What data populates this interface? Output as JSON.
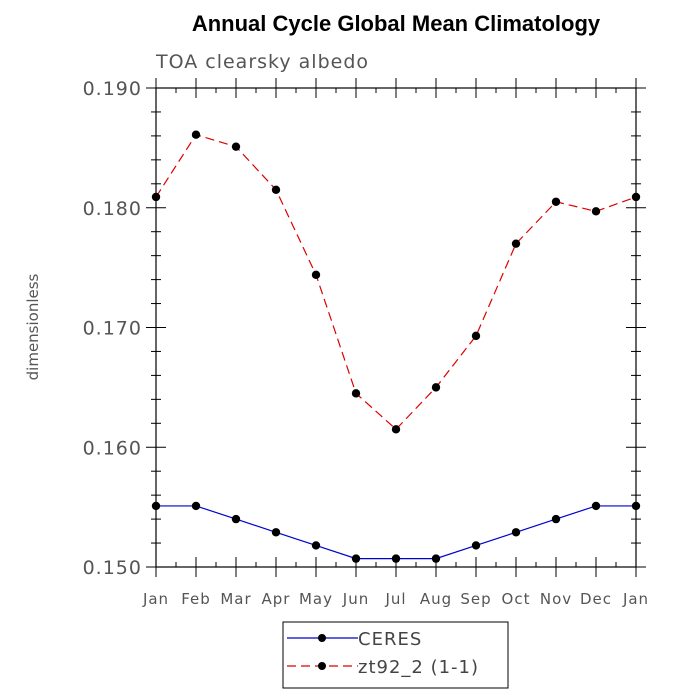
{
  "chart_data": {
    "type": "line",
    "title": "Annual Cycle Global Mean Climatology",
    "subtitle": "TOA clearsky albedo",
    "xlabel": "",
    "ylabel": "dimensionless",
    "categories": [
      "Jan",
      "Feb",
      "Mar",
      "Apr",
      "May",
      "Jun",
      "Jul",
      "Aug",
      "Sep",
      "Oct",
      "Nov",
      "Dec",
      "Jan"
    ],
    "ylim": [
      0.15,
      0.19
    ],
    "yticks": [
      "0.150",
      "0.160",
      "0.170",
      "0.180",
      "0.190"
    ],
    "grid": false,
    "legend_position": "bottom",
    "series": [
      {
        "name": "CERES",
        "color": "#0000cc",
        "style": "solid",
        "marker": "circle",
        "values": [
          0.1551,
          0.1551,
          0.154,
          0.1529,
          0.1518,
          0.1507,
          0.1507,
          0.1507,
          0.1518,
          0.1529,
          0.154,
          0.1551,
          0.1551
        ]
      },
      {
        "name": "zt92_2 (1-1)",
        "color": "#dd0000",
        "style": "dashed",
        "marker": "circle",
        "values": [
          0.1809,
          0.1861,
          0.1851,
          0.1815,
          0.1744,
          0.1645,
          0.1615,
          0.165,
          0.1693,
          0.177,
          0.1805,
          0.1797,
          0.1809
        ]
      }
    ]
  }
}
